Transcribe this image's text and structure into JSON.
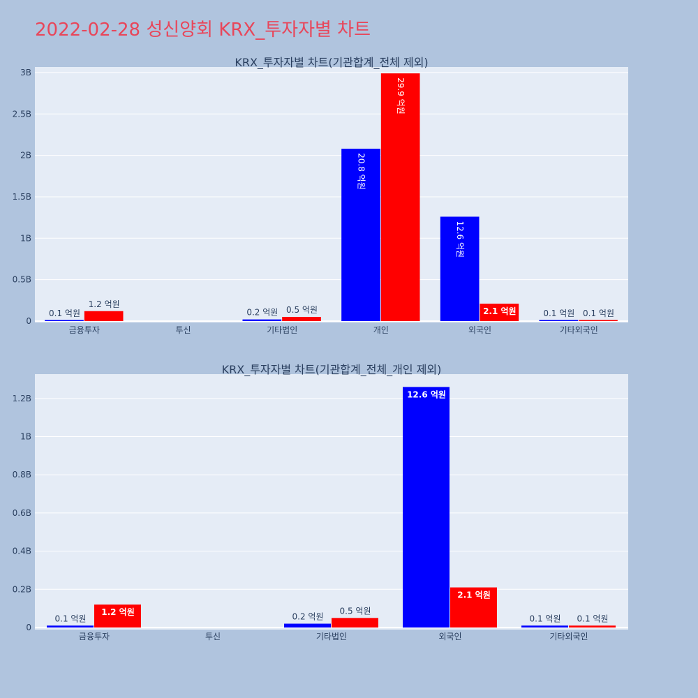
{
  "page": {
    "title": "2022-02-28 성신양회 KRX_투자자별 차트"
  },
  "colors": {
    "buy": "#0000ff",
    "sell": "#ff0000",
    "plot_bg": "#e5ecf6",
    "page_bg": "#b0c4de",
    "title": "#e8465a"
  },
  "chart_data": [
    {
      "type": "bar",
      "title": "KRX_투자자별 차트(기관합계_전체 제외)",
      "categories": [
        "금융투자",
        "투신",
        "기타법인",
        "개인",
        "외국인",
        "기타외국인"
      ],
      "series": [
        {
          "values": [
            10000000,
            0,
            20000000,
            2080000000,
            1260000000,
            10000000
          ],
          "labels": [
            "0.1 억원",
            "",
            "0.2 억원",
            "20.8 억원",
            "12.6 억원",
            "0.1 억원"
          ]
        },
        {
          "values": [
            120000000,
            0,
            50000000,
            2990000000,
            210000000,
            10000000
          ],
          "labels": [
            "1.2 억원",
            "",
            "0.5 억원",
            "29.9 억원",
            "2.1 억원",
            "0.1 억원"
          ]
        }
      ],
      "ylim": [
        0,
        3050000000
      ],
      "yticks": [
        0,
        500000000,
        1000000000,
        1500000000,
        2000000000,
        2500000000,
        3000000000
      ],
      "ytick_labels": [
        "0",
        "0.5B",
        "1B",
        "1.5B",
        "2B",
        "2.5B",
        "3B"
      ],
      "grid": true,
      "legend": "none"
    },
    {
      "type": "bar",
      "title": "KRX_투자자별 차트(기관합계_전체_개인 제외)",
      "categories": [
        "금융투자",
        "투신",
        "기타법인",
        "외국인",
        "기타외국인"
      ],
      "series": [
        {
          "values": [
            10000000,
            0,
            20000000,
            1260000000,
            10000000
          ],
          "labels": [
            "0.1 억원",
            "",
            "0.2 억원",
            "12.6 억원",
            "0.1 억원"
          ]
        },
        {
          "values": [
            120000000,
            0,
            50000000,
            210000000,
            10000000
          ],
          "labels": [
            "1.2 억원",
            "",
            "0.5 억원",
            "2.1 억원",
            "0.1 억원"
          ]
        }
      ],
      "ylim": [
        0,
        1320000000
      ],
      "yticks": [
        0,
        200000000,
        400000000,
        600000000,
        800000000,
        1000000000,
        1200000000
      ],
      "ytick_labels": [
        "0",
        "0.2B",
        "0.4B",
        "0.6B",
        "0.8B",
        "1B",
        "1.2B"
      ],
      "grid": true,
      "legend": "none"
    }
  ]
}
